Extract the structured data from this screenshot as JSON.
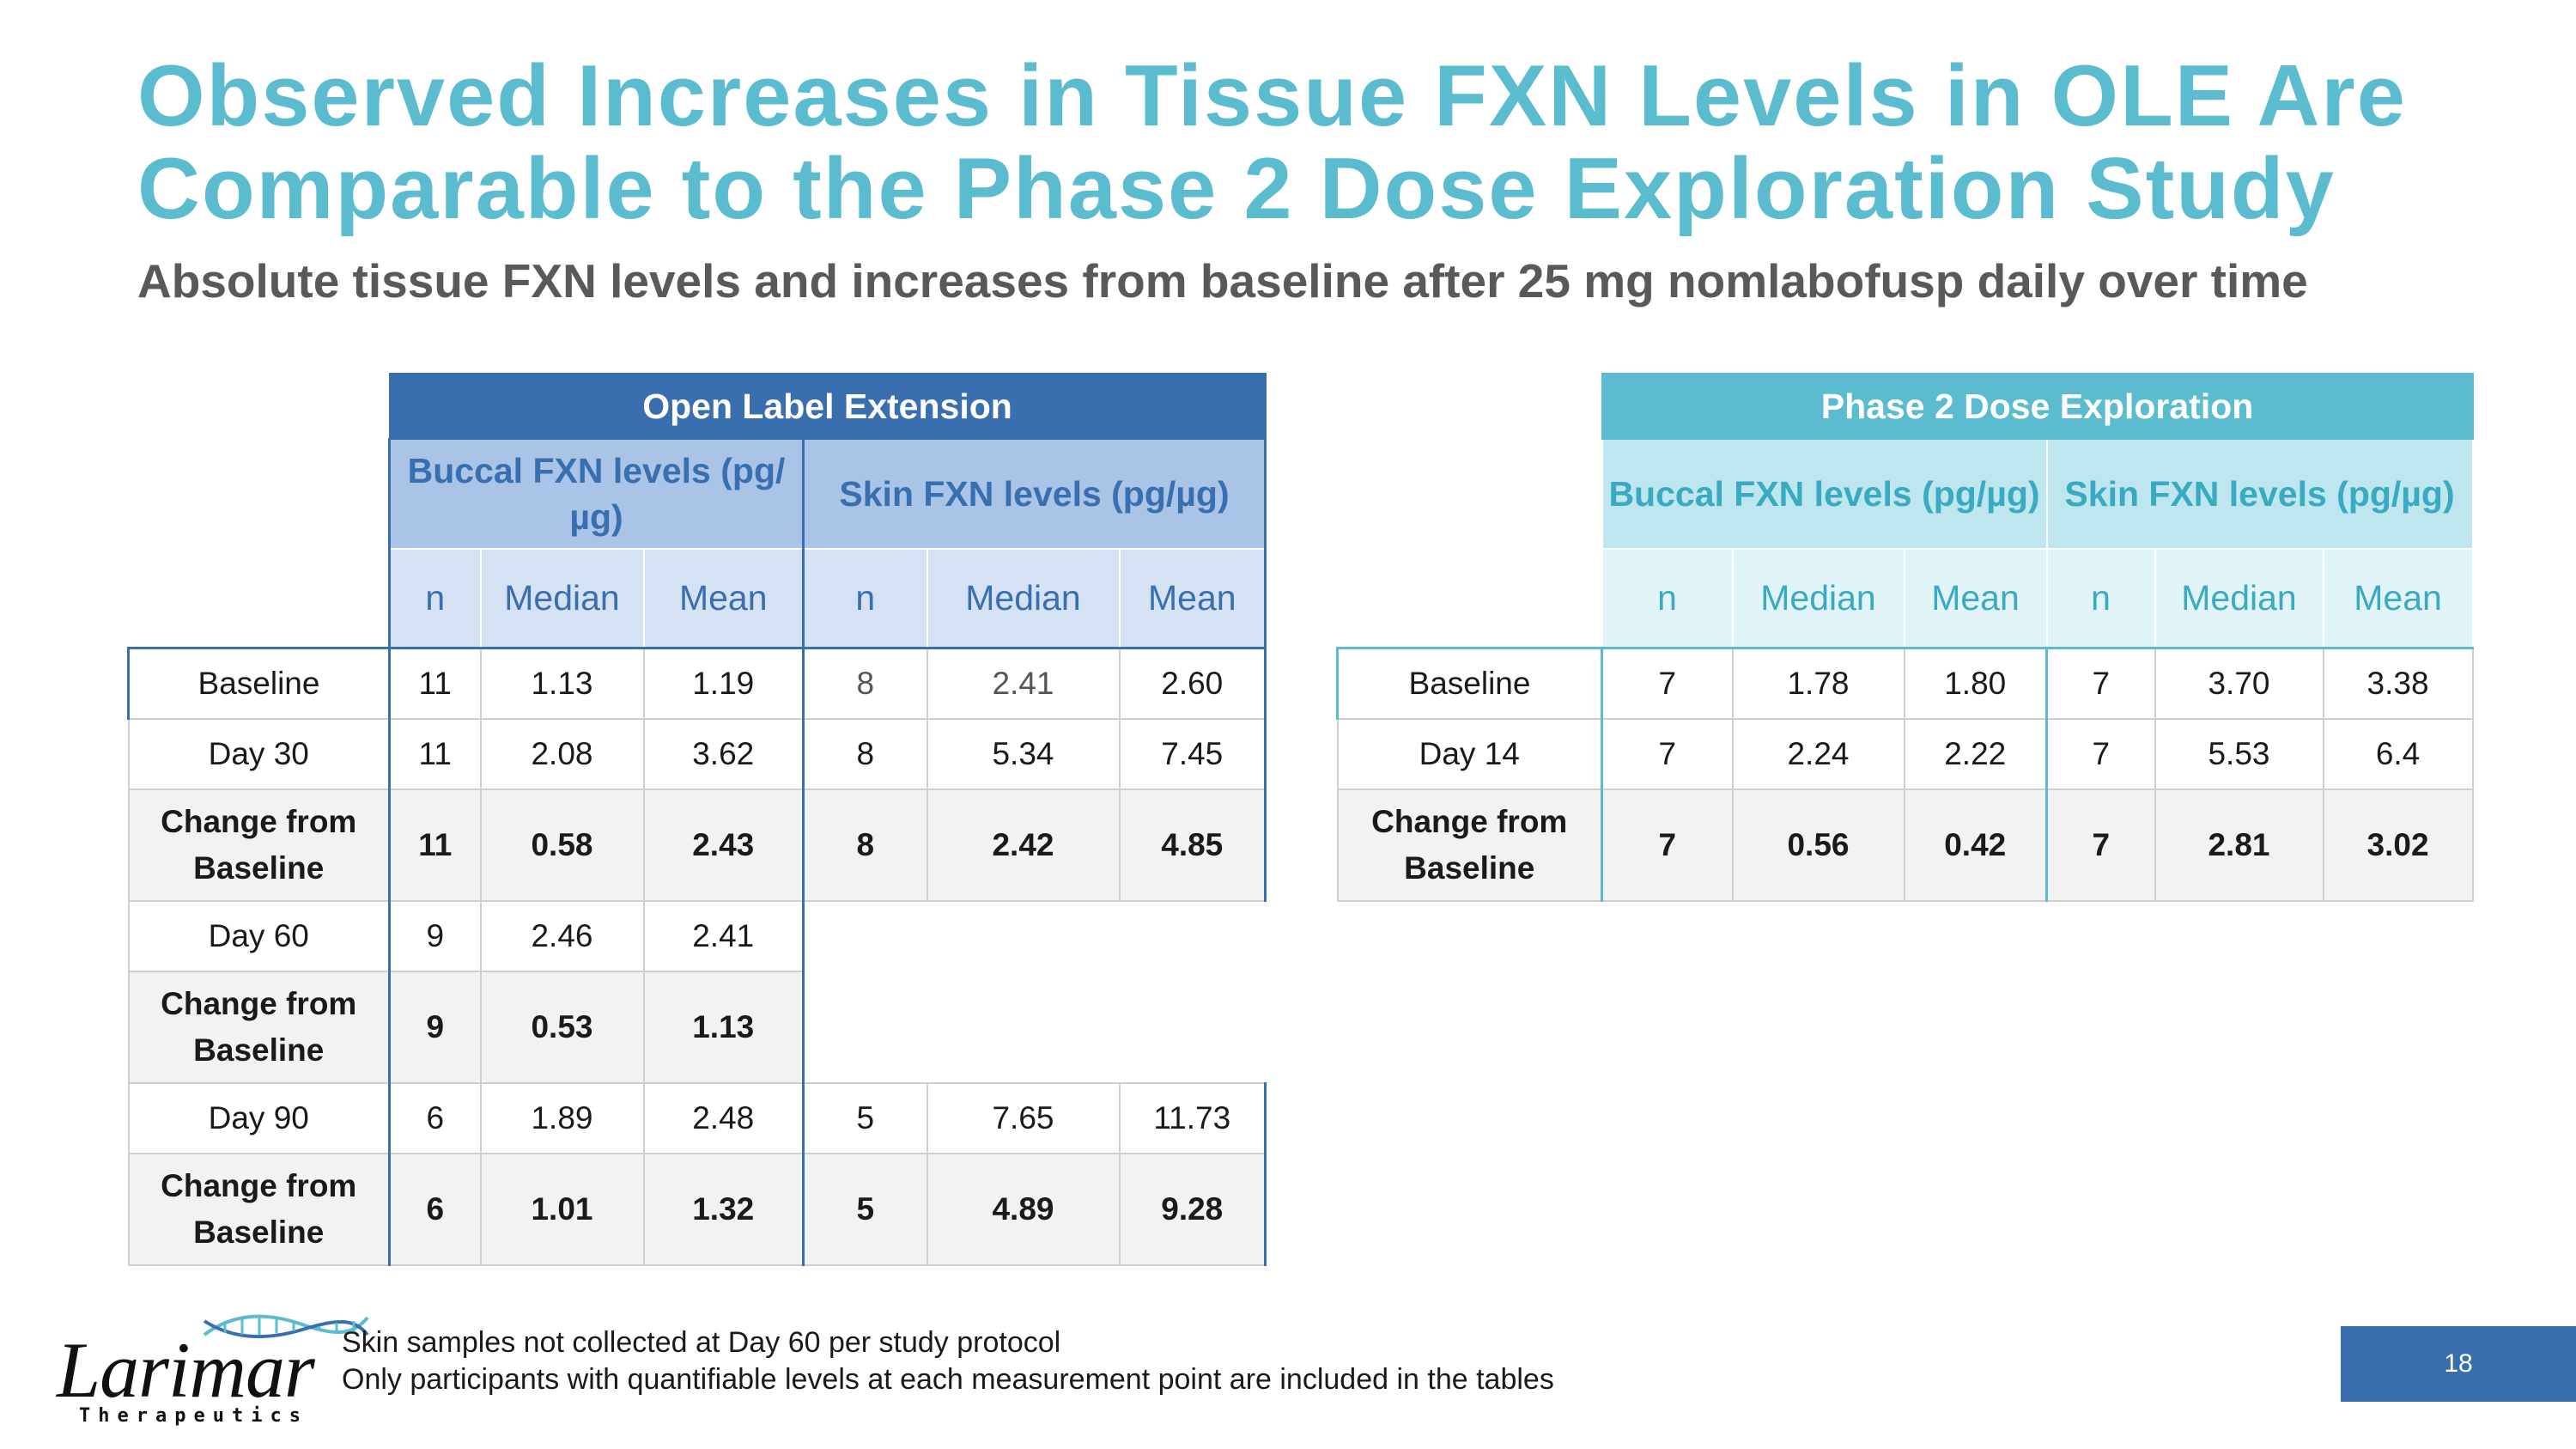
{
  "title": {
    "line1": "Observed Increases in Tissue FXN Levels in OLE Are",
    "line2": "Comparable to the Phase 2 Dose Exploration Study"
  },
  "subtitle": "Absolute tissue FXN levels and increases from baseline after 25 mg nomlabofusp daily over time",
  "colors": {
    "title": "#5bbcd0",
    "ole_header": "#3a6faf",
    "ole_sub": "#a9c4e6",
    "ole_col": "#d4e2f3",
    "p2_header": "#5bbcd0",
    "p2_sub": "#bde6ee",
    "p2_col": "#e1f4f8"
  },
  "ole": {
    "header": "Open Label Extension",
    "buccal_header": "Buccal FXN levels (pg/µg)",
    "skin_header": "Skin FXN levels (pg/µg)",
    "columns": [
      "n",
      "Median",
      "Mean",
      "n",
      "Median",
      "Mean"
    ],
    "rows": [
      {
        "label": "Baseline",
        "values": [
          "11",
          "1.13",
          "1.19",
          "8",
          "2.41",
          "2.60"
        ]
      },
      {
        "label": "Day 30",
        "values": [
          "11",
          "2.08",
          "3.62",
          "8",
          "5.34",
          "7.45"
        ]
      },
      {
        "label": "Change from Baseline",
        "values": [
          "11",
          "0.58",
          "2.43",
          "8",
          "2.42",
          "4.85"
        ]
      },
      {
        "label": "Day 60",
        "values": [
          "9",
          "2.46",
          "2.41"
        ]
      },
      {
        "label": "Change from Baseline",
        "values": [
          "9",
          "0.53",
          "1.13"
        ]
      },
      {
        "label": "Day 90",
        "values": [
          "6",
          "1.89",
          "2.48",
          "5",
          "7.65",
          "11.73"
        ]
      },
      {
        "label": "Change from Baseline",
        "values": [
          "6",
          "1.01",
          "1.32",
          "5",
          "4.89",
          "9.28"
        ]
      }
    ]
  },
  "phase2": {
    "header": "Phase 2 Dose Exploration",
    "buccal_header": "Buccal FXN levels (pg/µg)",
    "skin_header": "Skin FXN levels (pg/µg)",
    "columns": [
      "n",
      "Median",
      "Mean",
      "n",
      "Median",
      "Mean"
    ],
    "rows": [
      {
        "label": "Baseline",
        "values": [
          "7",
          "1.78",
          "1.80",
          "7",
          "3.70",
          "3.38"
        ]
      },
      {
        "label": "Day 14",
        "values": [
          "7",
          "2.24",
          "2.22",
          "7",
          "5.53",
          "6.4"
        ]
      },
      {
        "label": "Change from Baseline",
        "values": [
          "7",
          "0.56",
          "0.42",
          "7",
          "2.81",
          "3.02"
        ]
      }
    ]
  },
  "footnotes": [
    "Skin samples not collected at Day 60 per study protocol",
    "Only participants with quantifiable levels at each measurement point are included in the tables"
  ],
  "logo": {
    "name": "Larimar",
    "sub": "Therapeutics"
  },
  "page_number": "18"
}
